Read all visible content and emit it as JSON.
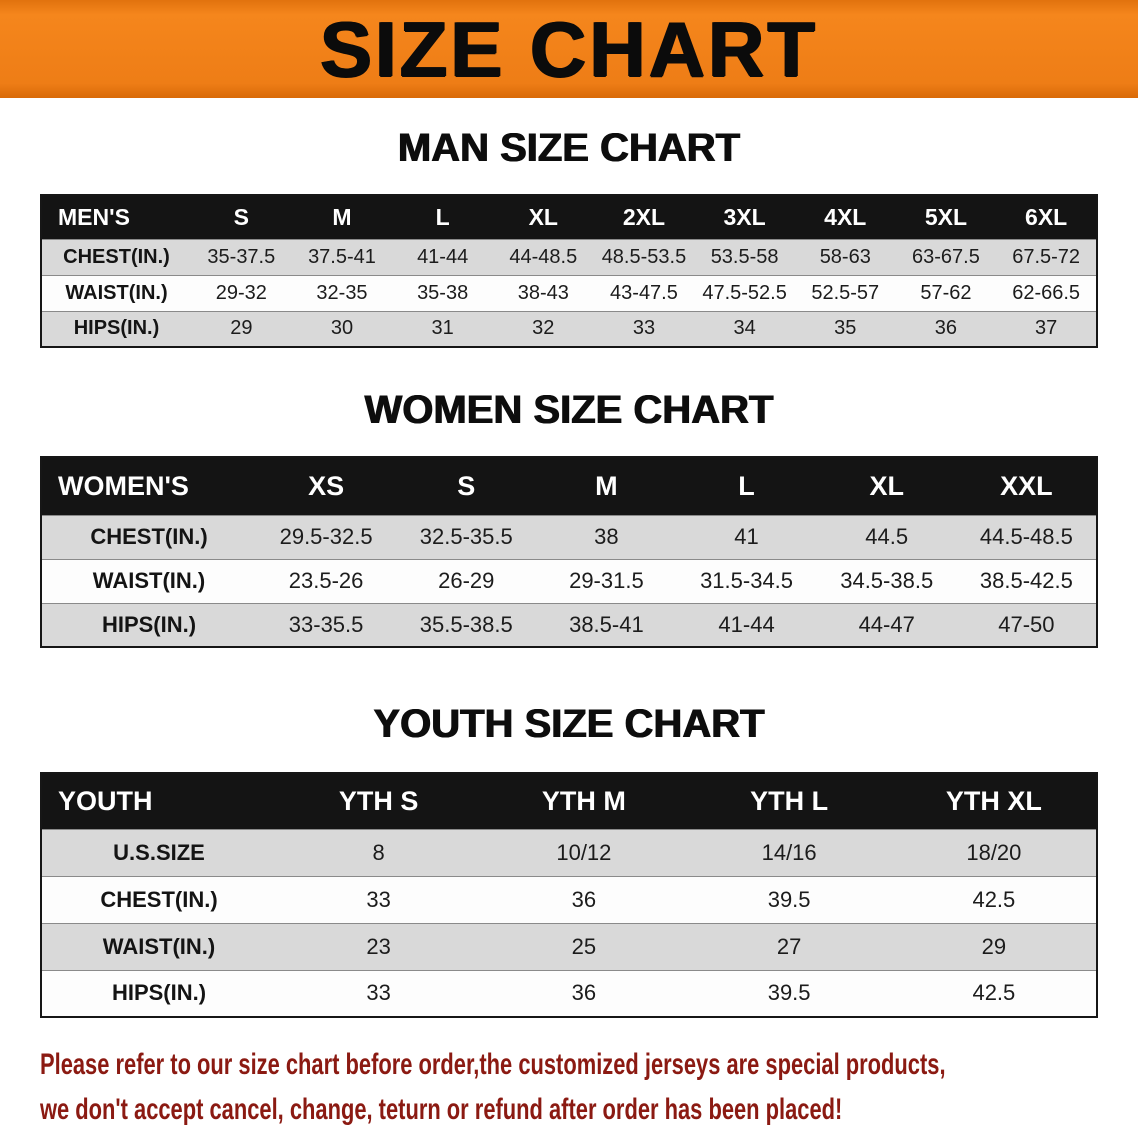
{
  "banner": {
    "title": "SIZE CHART",
    "bg_color": "#ee7d16",
    "text_color": "#0b0b0b"
  },
  "sections": [
    {
      "heading": "MAN SIZE CHART",
      "table": {
        "header": [
          "MEN'S",
          "S",
          "M",
          "L",
          "XL",
          "2XL",
          "3XL",
          "4XL",
          "5XL",
          "6XL"
        ],
        "rows": [
          [
            "CHEST(IN.)",
            "35-37.5",
            "37.5-41",
            "41-44",
            "44-48.5",
            "48.5-53.5",
            "53.5-58",
            "58-63",
            "63-67.5",
            "67.5-72"
          ],
          [
            "WAIST(IN.)",
            "29-32",
            "32-35",
            "35-38",
            "38-43",
            "43-47.5",
            "47.5-52.5",
            "52.5-57",
            "57-62",
            "62-66.5"
          ],
          [
            "HIPS(IN.)",
            "29",
            "30",
            "31",
            "32",
            "33",
            "34",
            "35",
            "36",
            "37"
          ]
        ]
      }
    },
    {
      "heading": "WOMEN SIZE CHART",
      "table": {
        "header": [
          "WOMEN'S",
          "XS",
          "S",
          "M",
          "L",
          "XL",
          "XXL"
        ],
        "rows": [
          [
            "CHEST(IN.)",
            "29.5-32.5",
            "32.5-35.5",
            "38",
            "41",
            "44.5",
            "44.5-48.5"
          ],
          [
            "WAIST(IN.)",
            "23.5-26",
            "26-29",
            "29-31.5",
            "31.5-34.5",
            "34.5-38.5",
            "38.5-42.5"
          ],
          [
            "HIPS(IN.)",
            "33-35.5",
            "35.5-38.5",
            "38.5-41",
            "41-44",
            "44-47",
            "47-50"
          ]
        ]
      }
    },
    {
      "heading": "YOUTH SIZE CHART",
      "table": {
        "header": [
          "YOUTH",
          "YTH S",
          "YTH M",
          "YTH L",
          "YTH XL"
        ],
        "rows": [
          [
            "U.S.SIZE",
            "8",
            "10/12",
            "14/16",
            "18/20"
          ],
          [
            "CHEST(IN.)",
            "33",
            "36",
            "39.5",
            "42.5"
          ],
          [
            "WAIST(IN.)",
            "23",
            "25",
            "27",
            "29"
          ],
          [
            "HIPS(IN.)",
            "33",
            "36",
            "39.5",
            "42.5"
          ]
        ]
      }
    }
  ],
  "footer": {
    "lines": [
      "Please refer to our size chart before order,the customized jerseys are special products,",
      "we don't accept cancel, change, teturn or refund after order has been placed!"
    ],
    "text_color": "#8b1a12"
  },
  "colors": {
    "banner_orange": "#ee7d16",
    "table_header_black": "#141414",
    "row_gray": "#d9d9d9",
    "row_white": "#fdfdfd",
    "disclaimer_red": "#8b1a12"
  }
}
